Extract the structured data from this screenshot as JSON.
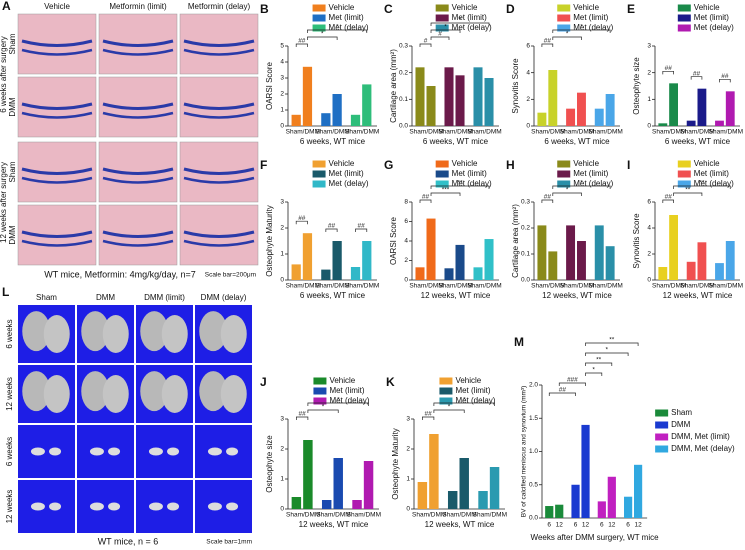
{
  "panel_a": {
    "letter": "A",
    "columns": [
      "Vehicle",
      "Metformin (limit)",
      "Metformin (delay)"
    ],
    "rows": [
      "Sham",
      "DMM",
      "Sham",
      "DMM"
    ],
    "sides": [
      "6 weeks after surgery",
      "12 weeks after surgery"
    ],
    "caption": "WT mice, Metformin: 4mg/kg/day, n=7",
    "scale": "Scale bar=200μm"
  },
  "panel_l": {
    "letter": "L",
    "columns": [
      "Sham",
      "DMM",
      "DMM (limit)",
      "DMM (delay)"
    ],
    "rows": [
      "6 weeks",
      "12 weeks",
      "6 weeks",
      "12 weeks"
    ],
    "caption": "WT mice, n = 6",
    "scale": "Scale bar=1mm"
  },
  "chart_data": [
    {
      "type": "paired_bar",
      "panel": "B",
      "ylabel": "OARSI Score",
      "xlabel": "6 weeks, WT mice",
      "ylim": [
        0,
        5
      ],
      "yticks": [
        0,
        1,
        2,
        3,
        4,
        5
      ],
      "groups": [
        {
          "name": "Vehicle",
          "color": "#f07f1e",
          "label": "Sham/DMM",
          "values": [
            0.7,
            3.7
          ]
        },
        {
          "name": "Met (limit)",
          "color": "#1f6fc4",
          "label": "Sham/DMM",
          "values": [
            0.8,
            2.0
          ]
        },
        {
          "name": "Met (delay)",
          "color": "#2ebd7a",
          "label": "Sham/DMM",
          "values": [
            0.7,
            2.6
          ]
        }
      ],
      "annotations": [
        "##",
        "*",
        "*"
      ]
    },
    {
      "type": "paired_bar",
      "panel": "C",
      "ylabel": "Cartilage area (mm²)",
      "xlabel": "6 weeks, WT mice",
      "ylim": [
        0,
        0.3
      ],
      "yticks": [
        {
          "value": 0,
          "label": "0.0"
        },
        0.1,
        0.2,
        0.3
      ],
      "groups": [
        {
          "name": "Vehicle",
          "color": "#8a8a1a",
          "label": "Sham/DMM",
          "values": [
            0.22,
            0.15
          ]
        },
        {
          "name": "Met (limit)",
          "color": "#6b1a4a",
          "label": "Sham/DMM",
          "values": [
            0.22,
            0.19
          ]
        },
        {
          "name": "Met (delay)",
          "color": "#2a8fa8",
          "label": "Sham/DMM",
          "values": [
            0.22,
            0.18
          ]
        }
      ],
      "annotations": [
        "#",
        "#",
        "*",
        "*"
      ]
    },
    {
      "type": "paired_bar",
      "panel": "D",
      "ylabel": "Synovitis Score",
      "xlabel": "6 weeks, WT mice",
      "ylim": [
        0,
        6
      ],
      "yticks": [
        0,
        2,
        4,
        6
      ],
      "groups": [
        {
          "name": "Vehicle",
          "color": "#c8d22a",
          "label": "Sham/DMM",
          "values": [
            1.0,
            4.2
          ]
        },
        {
          "name": "Met (limit)",
          "color": "#f05050",
          "label": "Sham/DMM",
          "values": [
            1.3,
            2.5
          ]
        },
        {
          "name": "Met (delay)",
          "color": "#4aa6e8",
          "label": "Sham/DMM",
          "values": [
            1.3,
            2.4
          ]
        }
      ],
      "annotations": [
        "##",
        "*",
        "*"
      ]
    },
    {
      "type": "paired_bar",
      "panel": "E",
      "ylabel": "Osteophyte size",
      "xlabel": "6 weeks, WT mice",
      "ylim": [
        0,
        3
      ],
      "yticks": [
        0,
        1,
        2,
        3
      ],
      "groups": [
        {
          "name": "Vehicle",
          "color": "#1a8a4a",
          "label": "Sham/DMM",
          "values": [
            0.1,
            1.6
          ]
        },
        {
          "name": "Met (limit)",
          "color": "#1a1a8a",
          "label": "Sham/DMM",
          "values": [
            0.2,
            1.4
          ]
        },
        {
          "name": "Met (delay)",
          "color": "#b01ab0",
          "label": "Sham/DMM",
          "values": [
            0.2,
            1.3
          ]
        }
      ],
      "annotations": [
        "##",
        "##",
        "##"
      ]
    },
    {
      "type": "paired_bar",
      "panel": "F",
      "ylabel": "Osteophyte Maturity",
      "xlabel": "6 weeks, WT mice",
      "ylim": [
        0,
        3
      ],
      "yticks": [
        0,
        1,
        2,
        3
      ],
      "groups": [
        {
          "name": "Vehicle",
          "color": "#f0a030",
          "label": "Sham/DMM",
          "values": [
            0.6,
            1.8
          ]
        },
        {
          "name": "Met (limit)",
          "color": "#1a5a6a",
          "label": "Sham/DMM",
          "values": [
            0.4,
            1.5
          ]
        },
        {
          "name": "Met (delay)",
          "color": "#30b8c8",
          "label": "Sham/DMM",
          "values": [
            0.5,
            1.5
          ]
        }
      ],
      "annotations": [
        "##",
        "##",
        "##"
      ]
    },
    {
      "type": "paired_bar",
      "panel": "G",
      "ylabel": "OARSI Score",
      "xlabel": "12 weeks, WT mice",
      "ylim": [
        0,
        8
      ],
      "yticks": [
        0,
        2,
        4,
        6,
        8
      ],
      "groups": [
        {
          "name": "Vehicle",
          "color": "#f06a1a",
          "label": "Sham/DMM",
          "values": [
            1.3,
            6.3
          ]
        },
        {
          "name": "Met (limit)",
          "color": "#1a4a8a",
          "label": "Sham/DMM",
          "values": [
            1.2,
            3.6
          ]
        },
        {
          "name": "Met (delay)",
          "color": "#30c0c8",
          "label": "Sham/DMM",
          "values": [
            1.3,
            4.2
          ]
        }
      ],
      "annotations": [
        "##",
        "***",
        "**"
      ]
    },
    {
      "type": "paired_bar",
      "panel": "H",
      "ylabel": "Cartilage area (mm²)",
      "xlabel": "12 weeks, WT mice",
      "ylim": [
        0,
        0.3
      ],
      "yticks": [
        {
          "value": 0,
          "label": "0.0"
        },
        0.1,
        0.2,
        0.3
      ],
      "groups": [
        {
          "name": "Vehicle",
          "color": "#8a8a1a",
          "label": "Sham/DMM",
          "values": [
            0.21,
            0.11
          ]
        },
        {
          "name": "Met (limit)",
          "color": "#6b1a4a",
          "label": "Sham/DMM",
          "values": [
            0.21,
            0.15
          ]
        },
        {
          "name": "Met (delay)",
          "color": "#2a8fa8",
          "label": "Sham/DMM",
          "values": [
            0.21,
            0.13
          ]
        }
      ],
      "annotations": [
        "##",
        "*",
        "*"
      ]
    },
    {
      "type": "paired_bar",
      "panel": "I",
      "ylabel": "Synovitis Score",
      "xlabel": "12 weeks, WT mice",
      "ylim": [
        0,
        6
      ],
      "yticks": [
        0,
        2,
        4,
        6
      ],
      "groups": [
        {
          "name": "Vehicle",
          "color": "#e8d020",
          "label": "Sham/DMM",
          "values": [
            1.0,
            5.0
          ]
        },
        {
          "name": "Met (limit)",
          "color": "#f05050",
          "label": "Sham/DMM",
          "values": [
            1.4,
            2.9
          ]
        },
        {
          "name": "Met (delay)",
          "color": "#4aa6e8",
          "label": "Sham/DMM",
          "values": [
            1.3,
            3.0
          ]
        }
      ],
      "annotations": [
        "##",
        "**",
        "**"
      ]
    },
    {
      "type": "paired_bar",
      "panel": "J",
      "ylabel": "Osteophyte size",
      "xlabel": "12 weeks, WT mice",
      "ylim": [
        0,
        3
      ],
      "yticks": [
        0,
        1,
        2,
        3
      ],
      "groups": [
        {
          "name": "Vehicle",
          "color": "#1a8a2a",
          "label": "Sham/DMM",
          "values": [
            0.4,
            2.3
          ]
        },
        {
          "name": "Met (limit)",
          "color": "#1a4ab0",
          "label": "Sham/DMM",
          "values": [
            0.3,
            1.7
          ]
        },
        {
          "name": "Met (delay)",
          "color": "#b01ab0",
          "label": "Sham/DMM",
          "values": [
            0.3,
            1.6
          ]
        }
      ],
      "annotations": [
        "##",
        "*",
        "*"
      ]
    },
    {
      "type": "paired_bar",
      "panel": "K",
      "ylabel": "Osteophyte Maturity",
      "xlabel": "12 weeks, WT mice",
      "ylim": [
        0,
        3
      ],
      "yticks": [
        0,
        1,
        2,
        3
      ],
      "groups": [
        {
          "name": "Vehicle",
          "color": "#f0a030",
          "label": "Sham/DMM",
          "values": [
            0.9,
            2.5
          ]
        },
        {
          "name": "Met (limit)",
          "color": "#1a5a6a",
          "label": "Sham/DMM",
          "values": [
            0.6,
            1.7
          ]
        },
        {
          "name": "Met (delay)",
          "color": "#2a9ab0",
          "label": "Sham/DMM",
          "values": [
            0.6,
            1.4
          ]
        }
      ],
      "annotations": [
        "##",
        "*",
        "*"
      ]
    },
    {
      "type": "paired_bar",
      "panel": "M",
      "ylabel": "BV of calcified meniscus and synovium (mm³)",
      "xlabel": "Weeks after DMM surgery, WT mice",
      "ylim": [
        0,
        2
      ],
      "yticks": [
        {
          "value": 0,
          "label": "0.0"
        },
        0.5,
        {
          "value": 1,
          "label": "1.0"
        },
        1.5,
        {
          "value": 2,
          "label": "2.0"
        }
      ],
      "categories": [
        "6",
        "12"
      ],
      "groups": [
        {
          "name": "Sham",
          "color": "#1a8a3a",
          "values": [
            0.18,
            0.2
          ]
        },
        {
          "name": "DMM",
          "color": "#1a3ad0",
          "values": [
            0.5,
            1.4
          ]
        },
        {
          "name": "DMM, Met (limit)",
          "color": "#c020c0",
          "values": [
            0.25,
            0.62
          ]
        },
        {
          "name": "DMM, Met (delay)",
          "color": "#30a8e0",
          "values": [
            0.32,
            0.8
          ]
        }
      ],
      "annotations": [
        "##",
        "###",
        "*",
        "**",
        "*",
        "**"
      ]
    }
  ]
}
